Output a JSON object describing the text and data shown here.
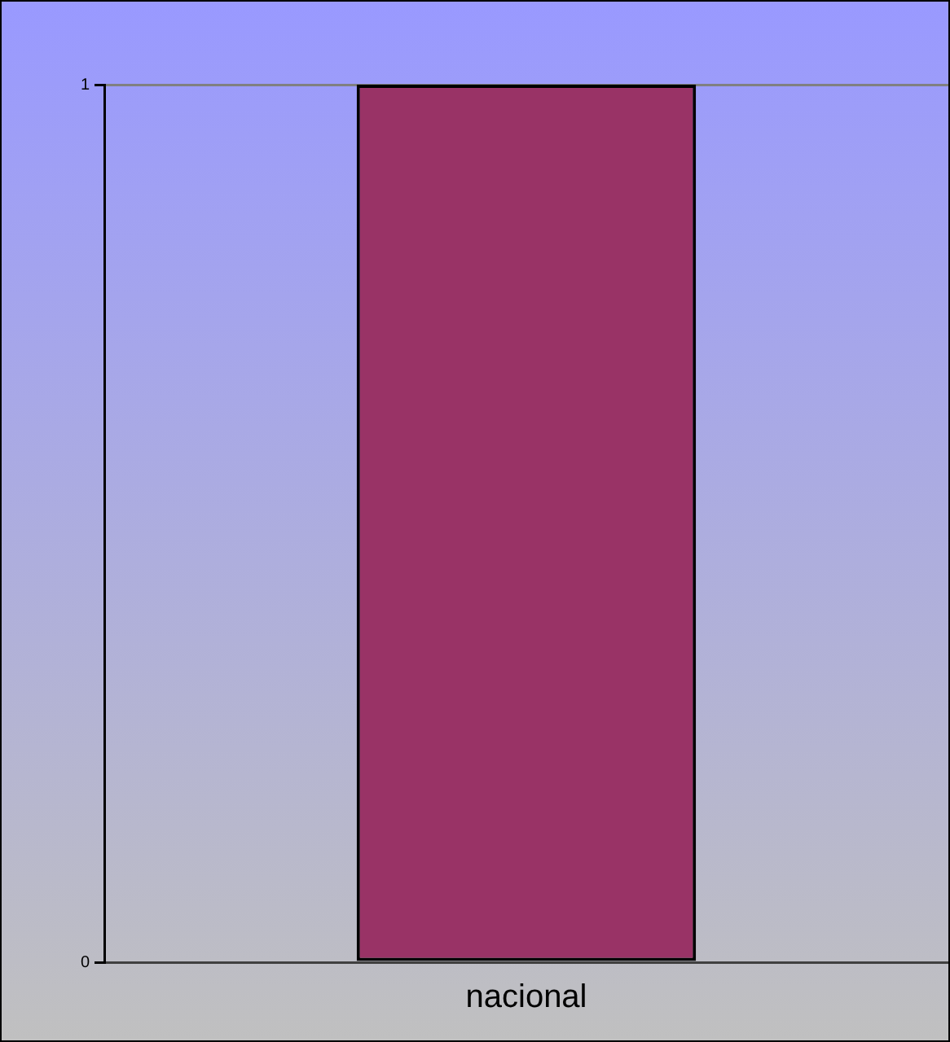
{
  "chart_data": {
    "type": "bar",
    "categories": [
      "nacional"
    ],
    "series": [
      {
        "color": "#993366",
        "values": [
          1
        ]
      }
    ],
    "ylim": [
      0,
      1
    ],
    "yticks": [
      0,
      1
    ],
    "grid": "y",
    "legend": false
  }
}
